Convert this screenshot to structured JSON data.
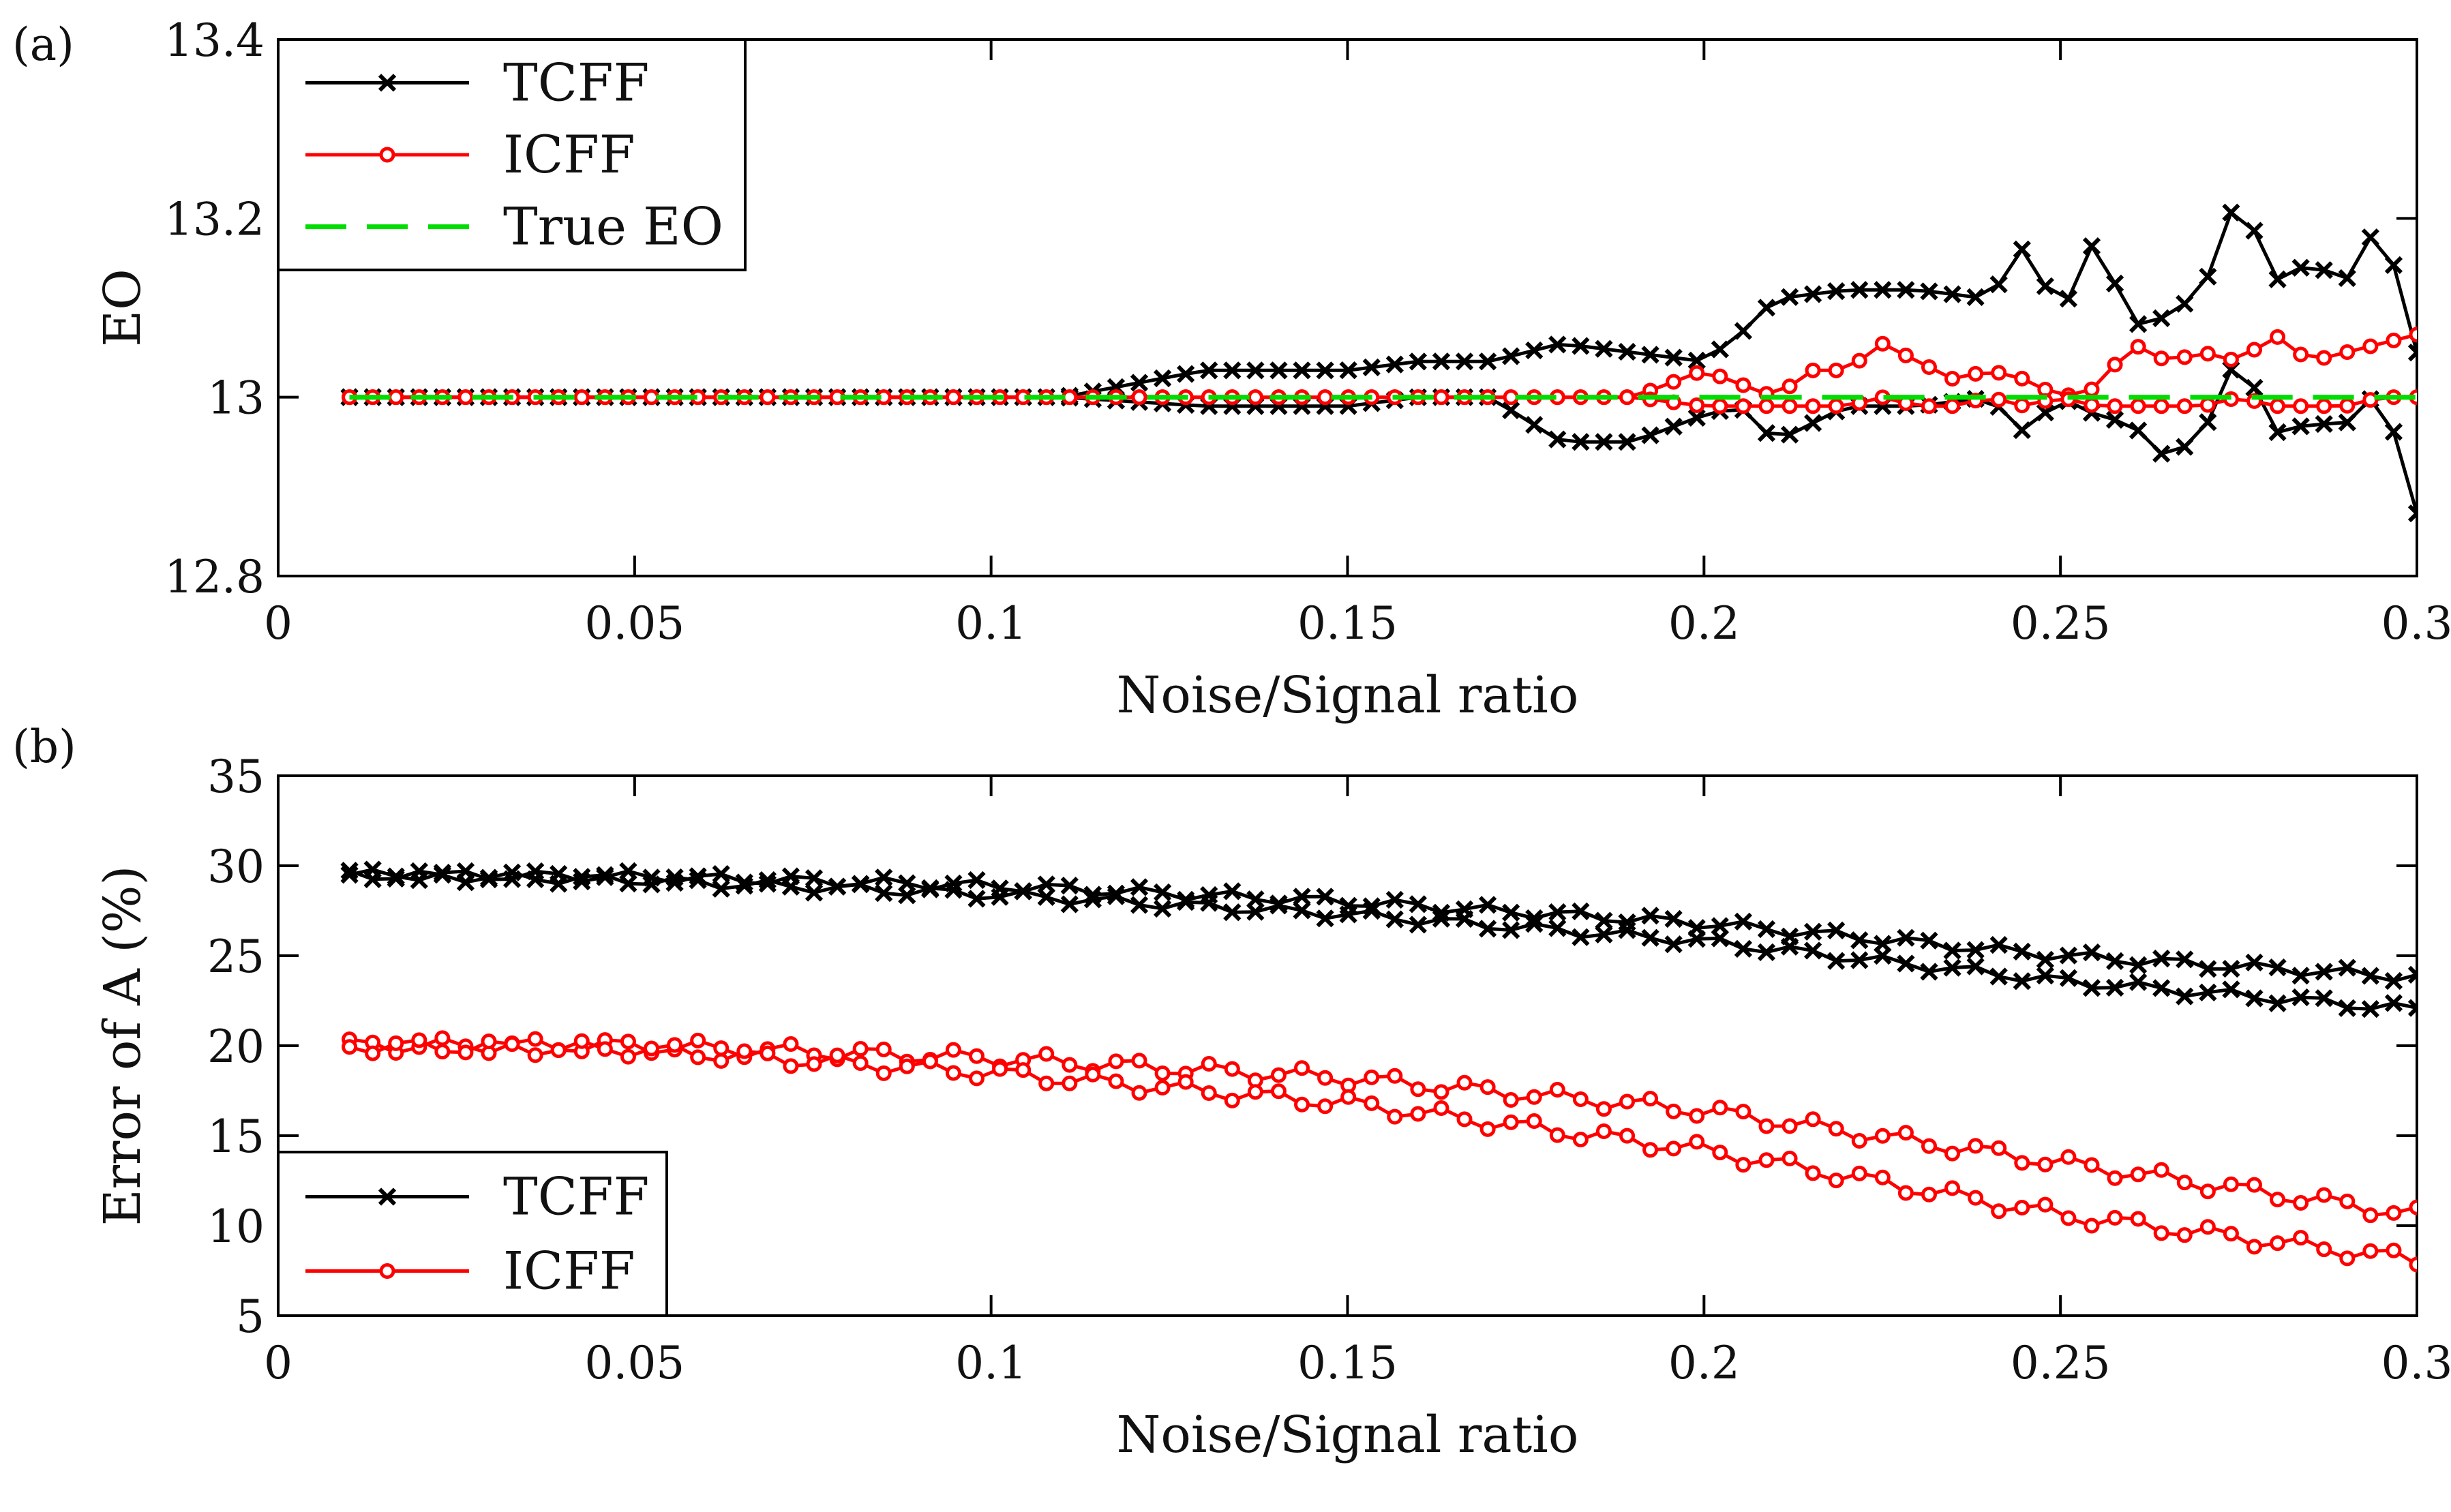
{
  "chart_data": [
    {
      "id": "panel-a",
      "type": "line",
      "panel_label": "(a)",
      "xlabel": "Noise/Signal ratio",
      "ylabel": "EO",
      "xlim": [
        0,
        0.3
      ],
      "ylim": [
        12.8,
        13.4
      ],
      "xticks": [
        0,
        0.05,
        0.1,
        0.15,
        0.2,
        0.25,
        0.3
      ],
      "xtick_labels": [
        "0",
        "0.05",
        "0.1",
        "0.15",
        "0.2",
        "0.25",
        "0.3"
      ],
      "yticks": [
        12.8,
        13.0,
        13.2,
        13.4
      ],
      "ytick_labels": [
        "12.8",
        "13",
        "13.2",
        "13.4"
      ],
      "legend_position": "top-left",
      "x_start": 0.01,
      "x_end": 0.3,
      "x_count": 90,
      "series": [
        {
          "name": "TCFF",
          "color": "#000000",
          "marker": "x",
          "dashed": false,
          "legend": "TCFF",
          "anchors_x": [
            0.01,
            0.11,
            0.13,
            0.15,
            0.16,
            0.17,
            0.18,
            0.19,
            0.2,
            0.205,
            0.21,
            0.22,
            0.23,
            0.24,
            0.245,
            0.25,
            0.255,
            0.26,
            0.265,
            0.27,
            0.275,
            0.28,
            0.285,
            0.29,
            0.295,
            0.3
          ],
          "upper_y": [
            13.0,
            13.0,
            13.03,
            13.03,
            13.04,
            13.04,
            13.06,
            13.05,
            13.04,
            13.07,
            13.11,
            13.12,
            13.12,
            13.11,
            13.17,
            13.09,
            13.18,
            13.08,
            13.09,
            13.12,
            13.23,
            13.13,
            13.15,
            13.13,
            13.2,
            13.05
          ],
          "lower_y": [
            13.0,
            13.0,
            12.99,
            12.99,
            13.0,
            13.0,
            12.95,
            12.95,
            12.98,
            12.99,
            12.95,
            12.99,
            12.99,
            13.0,
            12.96,
            13.0,
            12.98,
            12.97,
            12.93,
            12.96,
            13.05,
            12.96,
            12.97,
            12.97,
            13.01,
            12.87
          ]
        },
        {
          "name": "ICFF",
          "color": "#ff0000",
          "marker": "o",
          "dashed": false,
          "legend": "ICFF",
          "anchors_x": [
            0.01,
            0.19,
            0.2,
            0.21,
            0.215,
            0.22,
            0.225,
            0.23,
            0.235,
            0.24,
            0.245,
            0.25,
            0.255,
            0.26,
            0.265,
            0.27,
            0.275,
            0.28,
            0.285,
            0.29,
            0.295,
            0.3
          ],
          "upper_y": [
            13.0,
            13.0,
            13.03,
            13.0,
            13.03,
            13.03,
            13.06,
            13.04,
            13.02,
            13.03,
            13.02,
            13.0,
            13.01,
            13.06,
            13.04,
            13.05,
            13.04,
            13.07,
            13.04,
            13.05,
            13.06,
            13.07
          ],
          "lower_y": [
            13.0,
            13.0,
            12.99,
            12.99,
            12.99,
            12.99,
            13.0,
            12.99,
            12.99,
            13.0,
            12.99,
            13.0,
            12.99,
            12.99,
            12.99,
            12.99,
            13.0,
            12.99,
            12.99,
            12.99,
            13.0,
            13.0
          ]
        },
        {
          "name": "True EO",
          "color": "#00dd00",
          "marker": "none",
          "dashed": true,
          "legend": "True EO",
          "anchors_x": [
            0.01,
            0.3
          ],
          "upper_y": [
            13.0,
            13.0
          ],
          "lower_y": [
            13.0,
            13.0
          ]
        }
      ]
    },
    {
      "id": "panel-b",
      "type": "line",
      "panel_label": "(b)",
      "xlabel": "Noise/Signal ratio",
      "ylabel": "Error of  A  (%)",
      "xlim": [
        0,
        0.3
      ],
      "ylim": [
        5,
        35
      ],
      "xticks": [
        0,
        0.05,
        0.1,
        0.15,
        0.2,
        0.25,
        0.3
      ],
      "xtick_labels": [
        "0",
        "0.05",
        "0.1",
        "0.15",
        "0.2",
        "0.25",
        "0.3"
      ],
      "yticks": [
        5,
        10,
        15,
        20,
        25,
        30,
        35
      ],
      "ytick_labels": [
        "5",
        "10",
        "15",
        "20",
        "25",
        "30",
        "35"
      ],
      "legend_position": "bottom-left",
      "x_start": 0.01,
      "x_end": 0.3,
      "x_count": 90,
      "series": [
        {
          "name": "TCFF",
          "color": "#000000",
          "marker": "x",
          "dashed": false,
          "legend": "TCFF",
          "anchors_x": [
            0.01,
            0.05,
            0.1,
            0.15,
            0.2,
            0.25,
            0.3
          ],
          "upper_y": [
            29.5,
            29.4,
            28.9,
            28.0,
            26.8,
            25.0,
            23.8
          ],
          "lower_y": [
            29.5,
            29.2,
            28.4,
            27.3,
            25.8,
            23.6,
            22.0
          ],
          "jitter": 0.5
        },
        {
          "name": "ICFF",
          "color": "#ff0000",
          "marker": "o",
          "dashed": false,
          "legend": "ICFF",
          "anchors_x": [
            0.01,
            0.05,
            0.1,
            0.15,
            0.2,
            0.25,
            0.3
          ],
          "upper_y": [
            20.0,
            20.0,
            19.3,
            18.2,
            16.4,
            13.5,
            10.6
          ],
          "lower_y": [
            20.0,
            19.8,
            18.5,
            16.8,
            14.2,
            10.6,
            8.1
          ],
          "jitter": 0.7
        }
      ]
    }
  ]
}
